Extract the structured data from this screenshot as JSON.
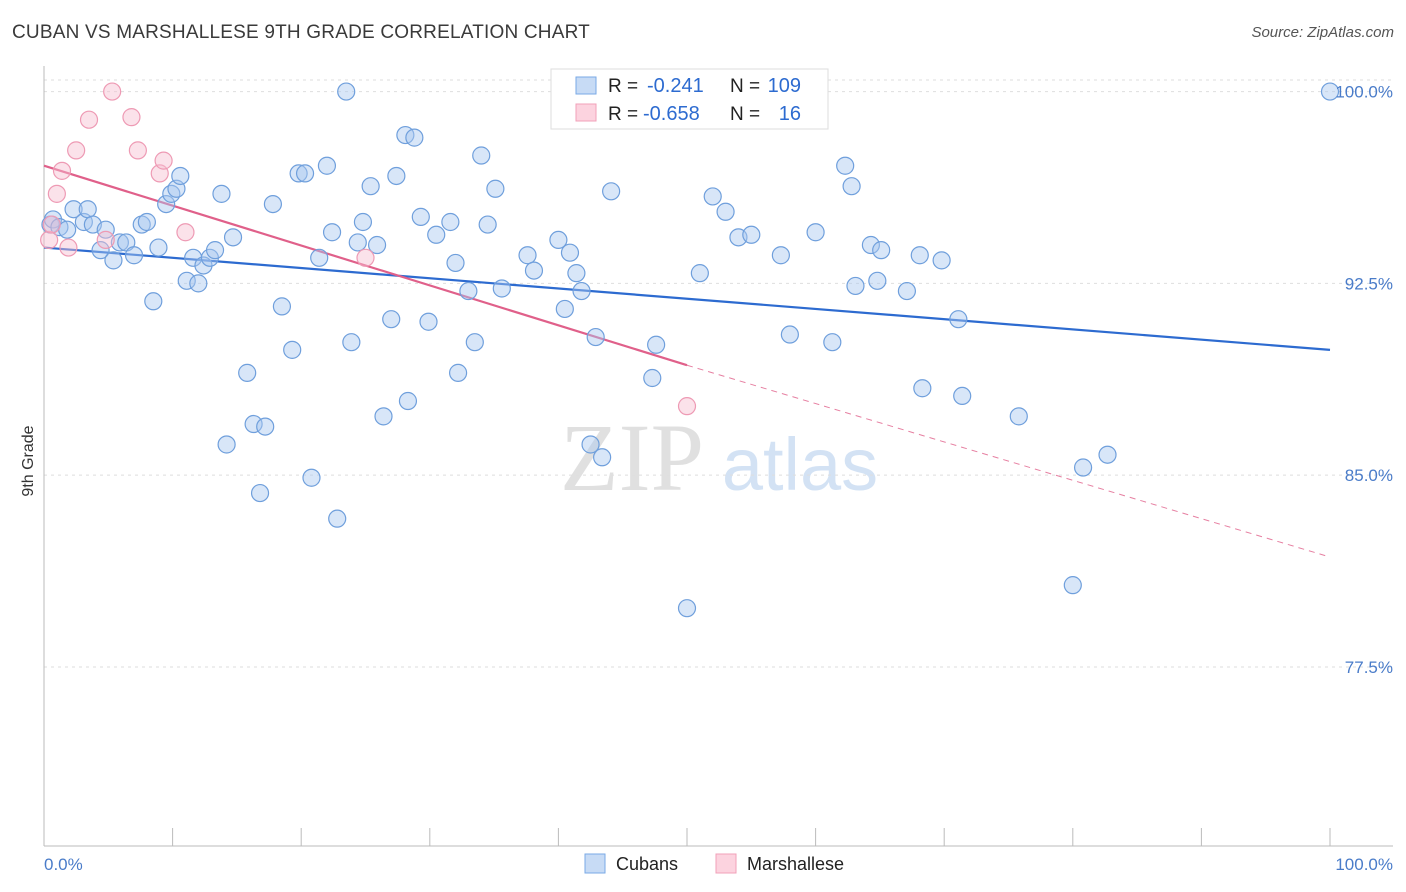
{
  "title": "CUBAN VS MARSHALLESE 9TH GRADE CORRELATION CHART",
  "source": "Source: ZipAtlas.com",
  "watermark": {
    "zip": "ZIP",
    "atlas": "atlas"
  },
  "colors": {
    "cubans": "#7aaae6",
    "cubans_line": "#2d6bd0",
    "marshallese": "#f2a0b8",
    "marshallese_line": "#e0608a",
    "tick_text": "#4a7cc9"
  },
  "legend": {
    "rows": [
      {
        "r_label": "R =",
        "r_value": "-0.241",
        "n_label": "N =",
        "n_value": "109"
      },
      {
        "r_label": "R =",
        "r_value": "-0.658",
        "n_label": "N =",
        "n_value": "16"
      }
    ],
    "bottom": [
      "Cubans",
      "Marshallese"
    ]
  },
  "chart_data": {
    "type": "scatter",
    "xlabel": "",
    "ylabel": "9th Grade",
    "xlim": [
      0,
      100
    ],
    "ylim": [
      70.5,
      101
    ],
    "x_tick_labels": [
      "0.0%",
      "100.0%"
    ],
    "y_ticks": [
      100.0,
      92.5,
      85.0,
      77.5
    ],
    "y_tick_labels": [
      "100.0%",
      "92.5%",
      "85.0%",
      "77.5%"
    ],
    "grid": true,
    "series": [
      {
        "name": "Cubans",
        "trend": {
          "x0": 0,
          "y0": 93.9,
          "x1": 100,
          "y1": 89.9
        },
        "points": [
          [
            0.5,
            94.8
          ],
          [
            0.7,
            95.0
          ],
          [
            1.2,
            94.7
          ],
          [
            1.8,
            94.6
          ],
          [
            2.3,
            95.4
          ],
          [
            3.1,
            94.9
          ],
          [
            3.4,
            95.4
          ],
          [
            3.8,
            94.8
          ],
          [
            4.4,
            93.8
          ],
          [
            4.8,
            94.6
          ],
          [
            5.4,
            93.4
          ],
          [
            5.9,
            94.1
          ],
          [
            6.4,
            94.1
          ],
          [
            7.0,
            93.6
          ],
          [
            7.6,
            94.8
          ],
          [
            8.0,
            94.9
          ],
          [
            8.5,
            91.8
          ],
          [
            8.9,
            93.9
          ],
          [
            9.5,
            95.6
          ],
          [
            9.9,
            96.0
          ],
          [
            10.3,
            96.2
          ],
          [
            10.6,
            96.7
          ],
          [
            11.1,
            92.6
          ],
          [
            11.6,
            93.5
          ],
          [
            12.0,
            92.5
          ],
          [
            12.4,
            93.2
          ],
          [
            12.9,
            93.5
          ],
          [
            13.3,
            93.8
          ],
          [
            13.8,
            96.0
          ],
          [
            14.2,
            86.2
          ],
          [
            14.7,
            94.3
          ],
          [
            15.8,
            89.0
          ],
          [
            16.3,
            87.0
          ],
          [
            16.8,
            84.3
          ],
          [
            17.2,
            86.9
          ],
          [
            17.8,
            95.6
          ],
          [
            18.5,
            91.6
          ],
          [
            19.3,
            89.9
          ],
          [
            19.8,
            96.8
          ],
          [
            20.3,
            96.8
          ],
          [
            20.8,
            84.9
          ],
          [
            21.4,
            93.5
          ],
          [
            22.0,
            97.1
          ],
          [
            22.4,
            94.5
          ],
          [
            22.8,
            83.3
          ],
          [
            23.5,
            100.0
          ],
          [
            23.9,
            90.2
          ],
          [
            24.4,
            94.1
          ],
          [
            24.8,
            94.9
          ],
          [
            25.4,
            96.3
          ],
          [
            25.9,
            94.0
          ],
          [
            26.4,
            87.3
          ],
          [
            27.0,
            91.1
          ],
          [
            27.4,
            96.7
          ],
          [
            28.1,
            98.3
          ],
          [
            28.3,
            87.9
          ],
          [
            28.8,
            98.2
          ],
          [
            29.3,
            95.1
          ],
          [
            29.9,
            91.0
          ],
          [
            30.5,
            94.4
          ],
          [
            31.6,
            94.9
          ],
          [
            32.0,
            93.3
          ],
          [
            32.2,
            89.0
          ],
          [
            33.0,
            92.2
          ],
          [
            33.5,
            90.2
          ],
          [
            34.0,
            97.5
          ],
          [
            34.5,
            94.8
          ],
          [
            35.1,
            96.2
          ],
          [
            35.6,
            92.3
          ],
          [
            37.6,
            93.6
          ],
          [
            38.1,
            93.0
          ],
          [
            40.0,
            94.2
          ],
          [
            40.5,
            91.5
          ],
          [
            40.9,
            93.7
          ],
          [
            41.4,
            92.9
          ],
          [
            41.8,
            92.2
          ],
          [
            42.5,
            86.2
          ],
          [
            42.9,
            90.4
          ],
          [
            43.4,
            85.7
          ],
          [
            44.1,
            96.1
          ],
          [
            47.3,
            88.8
          ],
          [
            47.6,
            90.1
          ],
          [
            50.0,
            79.8
          ],
          [
            51.0,
            92.9
          ],
          [
            52.0,
            95.9
          ],
          [
            53.0,
            95.3
          ],
          [
            54.0,
            94.3
          ],
          [
            55.0,
            94.4
          ],
          [
            57.3,
            93.6
          ],
          [
            58.0,
            90.5
          ],
          [
            60.0,
            94.5
          ],
          [
            61.3,
            90.2
          ],
          [
            62.3,
            97.1
          ],
          [
            62.8,
            96.3
          ],
          [
            63.1,
            92.4
          ],
          [
            64.3,
            94.0
          ],
          [
            64.8,
            92.6
          ],
          [
            65.1,
            93.8
          ],
          [
            67.1,
            92.2
          ],
          [
            68.1,
            93.6
          ],
          [
            68.3,
            88.4
          ],
          [
            69.8,
            93.4
          ],
          [
            71.1,
            91.1
          ],
          [
            71.4,
            88.1
          ],
          [
            75.8,
            87.3
          ],
          [
            80.0,
            80.7
          ],
          [
            80.8,
            85.3
          ],
          [
            82.7,
            85.8
          ],
          [
            100,
            100.0
          ]
        ]
      },
      {
        "name": "Marshallese",
        "trend": {
          "x0": 0,
          "y0": 97.1,
          "x1": 50,
          "y1": 89.3,
          "ext_x1": 100,
          "ext_y1": 81.8
        },
        "points": [
          [
            0.4,
            94.2
          ],
          [
            0.6,
            94.8
          ],
          [
            1.0,
            96.0
          ],
          [
            1.4,
            96.9
          ],
          [
            1.9,
            93.9
          ],
          [
            2.5,
            97.7
          ],
          [
            3.5,
            98.9
          ],
          [
            4.8,
            94.2
          ],
          [
            5.3,
            100.0
          ],
          [
            6.8,
            99.0
          ],
          [
            7.3,
            97.7
          ],
          [
            9.0,
            96.8
          ],
          [
            9.3,
            97.3
          ],
          [
            11.0,
            94.5
          ],
          [
            25.0,
            93.5
          ],
          [
            50.0,
            87.7
          ]
        ]
      }
    ]
  }
}
